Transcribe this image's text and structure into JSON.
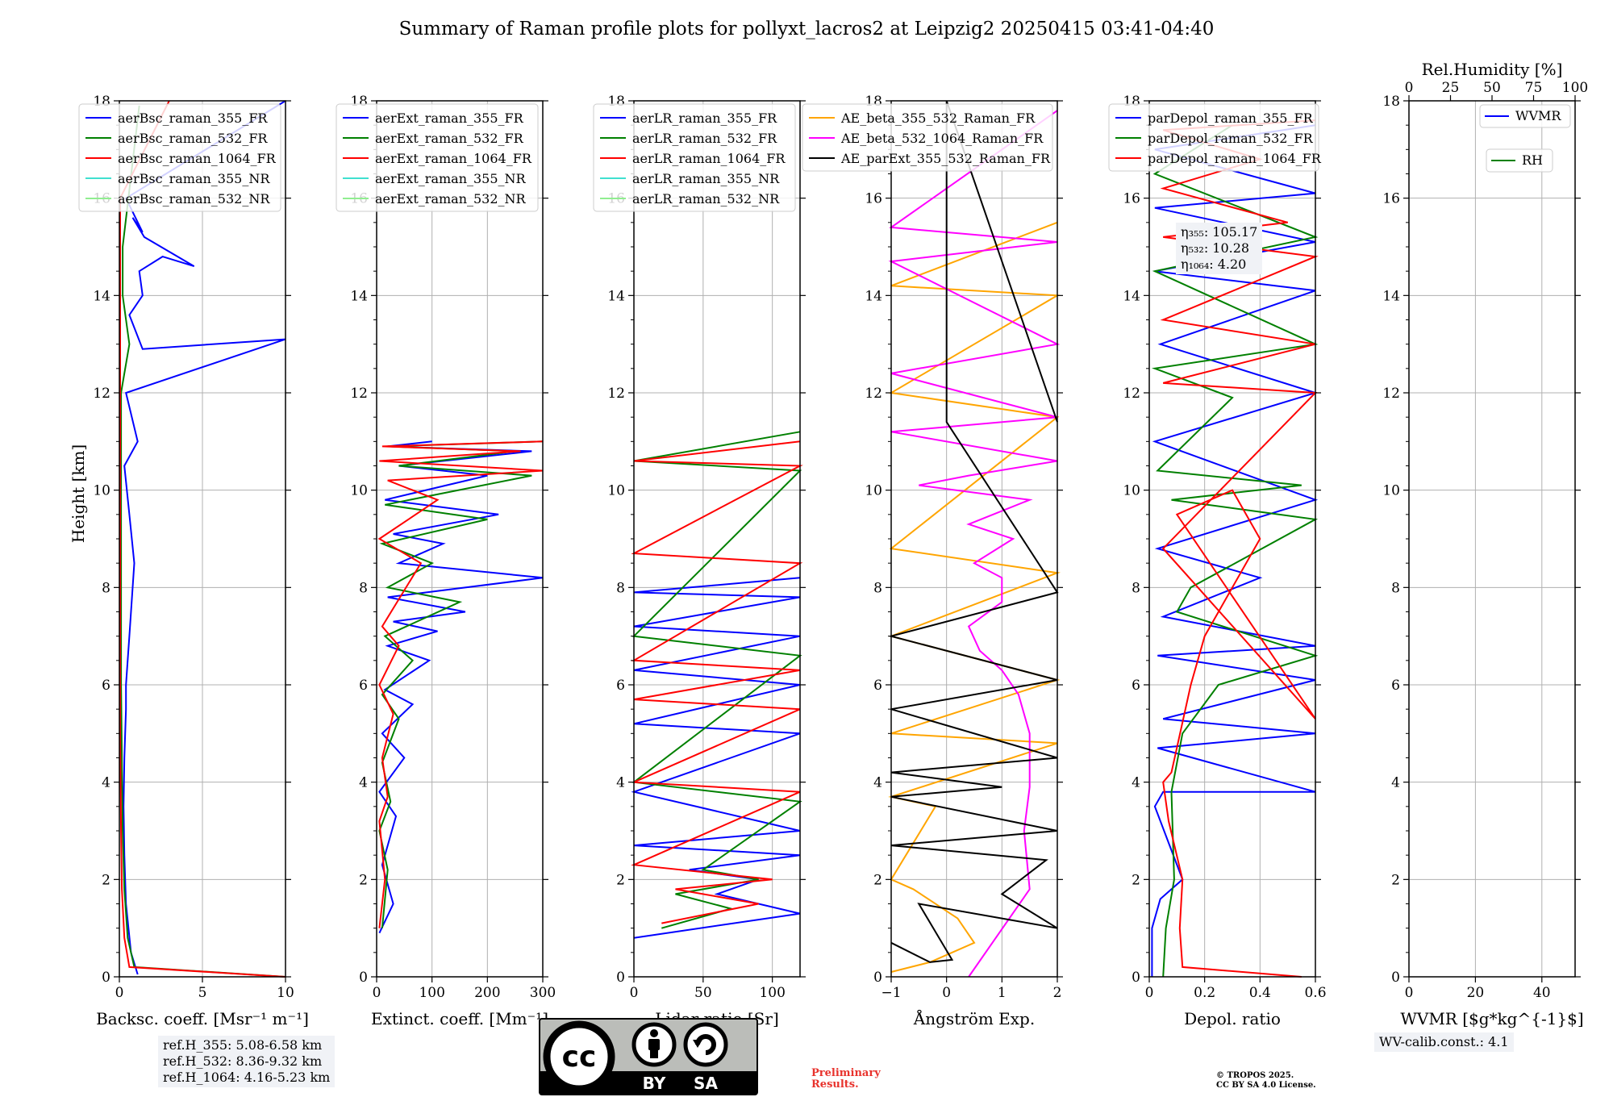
{
  "figure": {
    "title": "Summary of Raman profile plots for pollyxt_lacros2 at Leipzig2 20250415 03:41-04:40",
    "ylabel": "Height [km]"
  },
  "chart_data": [
    {
      "type": "line",
      "xlabel": "Backsc. coeff. [Msr⁻¹ m⁻¹]",
      "xlim": [
        0,
        10
      ],
      "xticks": [
        0,
        5,
        10
      ],
      "ylim": [
        0,
        18
      ],
      "yticks": [
        0,
        2,
        4,
        6,
        8,
        10,
        12,
        14,
        16,
        18
      ],
      "grid": true,
      "legend": "top-left",
      "series": [
        {
          "name": "aerBsc_raman_355_FR",
          "color": "#0000ff",
          "x": [
            1.1,
            0.7,
            0.4,
            0.3,
            0.25,
            0.3,
            0.4,
            0.4,
            0.6,
            0.9,
            0.6,
            0.3,
            1.1,
            0.4,
            10.0,
            1.4,
            0.6,
            1.4,
            1.2,
            2.6,
            4.5,
            1.5,
            0.8,
            1.4,
            0.4,
            10.0
          ],
          "y": [
            0.05,
            0.5,
            1.5,
            2.5,
            3.5,
            4.5,
            5.5,
            6.0,
            7.0,
            8.5,
            9.5,
            10.5,
            11.0,
            12.0,
            13.1,
            12.9,
            13.6,
            14.0,
            14.5,
            14.8,
            14.6,
            15.2,
            15.6,
            15.3,
            16.0,
            18.0
          ]
        },
        {
          "name": "aerBsc_raman_532_FR",
          "color": "#008000",
          "x": [
            10.0,
            0.9,
            0.5,
            0.3,
            0.2,
            0.15,
            0.1,
            0.1,
            0.1,
            0.1,
            0.6,
            0.2,
            0.2,
            1.2
          ],
          "y": [
            0.0,
            0.2,
            0.8,
            1.8,
            3.0,
            4.5,
            6.0,
            8.0,
            10.0,
            12.0,
            13.0,
            14.0,
            15.0,
            17.9
          ]
        },
        {
          "name": "aerBsc_raman_1064_FR",
          "color": "#ff0000",
          "x": [
            10.0,
            0.6,
            0.3,
            0.15,
            0.1,
            0.05,
            0.05,
            0.05,
            0.05,
            0.05,
            0.05,
            3.0
          ],
          "y": [
            0.0,
            0.2,
            0.8,
            1.8,
            3.0,
            5.0,
            8.0,
            10.0,
            12.0,
            14.0,
            16.0,
            18.0
          ]
        },
        {
          "name": "aerBsc_raman_355_NR",
          "color": "#40e0d0",
          "x": [],
          "y": []
        },
        {
          "name": "aerBsc_raman_532_NR",
          "color": "#90ee90",
          "x": [],
          "y": []
        }
      ]
    },
    {
      "type": "line",
      "xlabel": "Extinct. coeff. [Mm⁻¹]",
      "xlim": [
        0,
        300
      ],
      "xticks": [
        0,
        100,
        200,
        300
      ],
      "ylim": [
        0,
        18
      ],
      "yticks": [
        0,
        2,
        4,
        6,
        8,
        10,
        12,
        14,
        16,
        18
      ],
      "grid": true,
      "legend": "top-left",
      "series": [
        {
          "name": "aerExt_raman_355_FR",
          "color": "#0000ff",
          "x": [
            5,
            30,
            10,
            35,
            5,
            50,
            10,
            65,
            15,
            95,
            20,
            110,
            30,
            160,
            20,
            300,
            40,
            120,
            30,
            220,
            15,
            200,
            40,
            280,
            20,
            100
          ],
          "y": [
            0.9,
            1.5,
            2.3,
            3.3,
            3.8,
            4.5,
            5.0,
            5.6,
            5.9,
            6.5,
            6.8,
            7.1,
            7.3,
            7.5,
            7.8,
            8.2,
            8.5,
            8.9,
            9.1,
            9.5,
            9.8,
            10.3,
            10.5,
            10.8,
            10.9,
            11.0
          ]
        },
        {
          "name": "aerExt_raman_532_FR",
          "color": "#008000",
          "x": [
            10,
            20,
            5,
            25,
            10,
            40,
            10,
            65,
            15,
            150,
            20,
            100,
            10,
            200,
            15,
            280,
            40,
            250,
            20,
            300
          ],
          "y": [
            1.0,
            2.2,
            3.0,
            3.6,
            4.4,
            5.3,
            5.8,
            6.5,
            7.0,
            7.7,
            8.0,
            8.5,
            8.9,
            9.4,
            9.7,
            10.3,
            10.5,
            10.8,
            10.9,
            11.0
          ]
        },
        {
          "name": "aerExt_raman_1064_FR",
          "color": "#ff0000",
          "x": [
            5,
            15,
            5,
            20,
            10,
            30,
            5,
            40,
            10,
            80,
            5,
            110,
            20,
            300,
            5,
            260,
            10,
            300
          ],
          "y": [
            1.0,
            2.0,
            3.2,
            3.7,
            4.5,
            5.4,
            6.0,
            6.8,
            7.2,
            8.5,
            9.0,
            9.8,
            10.2,
            10.4,
            10.6,
            10.8,
            10.9,
            11.0
          ]
        },
        {
          "name": "aerExt_raman_355_NR",
          "color": "#40e0d0",
          "x": [],
          "y": []
        },
        {
          "name": "aerExt_raman_532_NR",
          "color": "#90ee90",
          "x": [],
          "y": []
        }
      ]
    },
    {
      "type": "line",
      "xlabel": "Lidar ratio [Sr]",
      "xlim": [
        0,
        120
      ],
      "xticks": [
        0,
        50,
        100
      ],
      "ylim": [
        0,
        18
      ],
      "yticks": [
        0,
        2,
        4,
        6,
        8,
        10,
        12,
        14,
        16,
        18
      ],
      "grid": true,
      "legend": "top-left",
      "series": [
        {
          "name": "aerLR_raman_355_FR",
          "color": "#0000ff",
          "x": [
            0,
            120,
            60,
            90,
            40,
            120,
            0,
            120,
            0,
            120,
            0,
            120,
            0,
            120,
            0,
            120,
            0,
            120
          ],
          "y": [
            0.8,
            1.3,
            1.7,
            2.0,
            2.2,
            2.5,
            2.7,
            3.0,
            3.8,
            5.0,
            5.2,
            6.0,
            6.3,
            7.0,
            7.2,
            7.8,
            7.9,
            8.2
          ]
        },
        {
          "name": "aerLR_raman_532_FR",
          "color": "#008000",
          "x": [
            20,
            70,
            30,
            90,
            50,
            120,
            0,
            120,
            0,
            120,
            0,
            120
          ],
          "y": [
            1.0,
            1.4,
            1.7,
            2.0,
            2.2,
            3.6,
            4.0,
            6.6,
            7.0,
            10.4,
            10.6,
            11.2
          ]
        },
        {
          "name": "aerLR_raman_1064_FR",
          "color": "#ff0000",
          "x": [
            20,
            90,
            30,
            100,
            0,
            120,
            0,
            120,
            0,
            120,
            0,
            120,
            0,
            120,
            0,
            120
          ],
          "y": [
            1.1,
            1.5,
            1.8,
            2.0,
            2.3,
            3.8,
            4.0,
            5.5,
            5.7,
            6.3,
            6.5,
            8.5,
            8.7,
            10.5,
            10.6,
            11.0
          ]
        },
        {
          "name": "aerLR_raman_355_NR",
          "color": "#40e0d0",
          "x": [],
          "y": []
        },
        {
          "name": "aerLR_raman_532_NR",
          "color": "#90ee90",
          "x": [],
          "y": []
        }
      ]
    },
    {
      "type": "line",
      "xlabel": "Ångström Exp.",
      "xlim": [
        -1,
        2
      ],
      "xticks": [
        -1,
        0,
        1,
        2
      ],
      "ylim": [
        0,
        18
      ],
      "yticks": [
        0,
        2,
        4,
        6,
        8,
        10,
        12,
        14,
        16,
        18
      ],
      "grid": true,
      "legend": "top-right",
      "series": [
        {
          "name": "AE_beta_355_532_Raman_FR",
          "color": "#ffa500",
          "x": [
            -1.0,
            -0.3,
            0.5,
            0.2,
            -0.6,
            -1.0,
            -0.2,
            -1.0,
            2.0,
            -1.0,
            2.0,
            -1.0,
            2.0,
            -1.0,
            2.0,
            -1.0,
            2.0,
            -1.0,
            2.0
          ],
          "y": [
            0.1,
            0.3,
            0.7,
            1.2,
            1.8,
            2.0,
            3.5,
            3.7,
            4.8,
            5.0,
            6.1,
            7.0,
            8.3,
            8.8,
            11.5,
            12.0,
            14.0,
            14.2,
            15.5
          ]
        },
        {
          "name": "AE_beta_532_1064_Raman_FR",
          "color": "#ff00ff",
          "x": [
            0.4,
            1.5,
            1.4,
            1.5,
            1.5,
            1.3,
            1.0,
            0.6,
            0.4,
            1.0,
            1.0,
            0.5,
            1.2,
            0.4,
            1.5,
            -0.5,
            0.4,
            2.0,
            -1.0,
            2.0,
            -1.0,
            2.0,
            -1.0,
            2.0,
            -1.0,
            2.0
          ],
          "y": [
            0.0,
            1.8,
            3.0,
            3.9,
            5.0,
            5.8,
            6.3,
            6.7,
            7.2,
            7.7,
            8.2,
            8.5,
            9.0,
            9.3,
            9.8,
            10.1,
            10.3,
            10.6,
            11.2,
            11.5,
            12.4,
            13.0,
            14.7,
            15.1,
            15.4,
            17.8
          ]
        },
        {
          "name": "AE_parExt_355_532_Raman_FR",
          "color": "#000000",
          "x": [
            -1.0,
            -0.3,
            0.1,
            -0.5,
            2.0,
            1.0,
            1.8,
            -1.0,
            2.0,
            -1.0,
            1.0,
            -1.0,
            2.0,
            -1.0,
            2.0,
            -1.0,
            2.0,
            0.0,
            0.0,
            2.0
          ],
          "y": [
            0.7,
            0.3,
            0.35,
            1.5,
            1.0,
            1.7,
            2.4,
            2.7,
            3.0,
            3.7,
            3.9,
            4.2,
            4.5,
            5.5,
            6.1,
            7.0,
            7.9,
            11.4,
            18.0,
            11.4
          ]
        }
      ]
    },
    {
      "type": "line",
      "xlabel": "Depol. ratio",
      "xlim": [
        0,
        0.6
      ],
      "xticks": [
        0.0,
        0.2,
        0.4,
        0.6
      ],
      "ylim": [
        0,
        18
      ],
      "yticks": [
        0,
        2,
        4,
        6,
        8,
        10,
        12,
        14,
        16,
        18
      ],
      "grid": true,
      "legend": "top-left",
      "series": [
        {
          "name": "parDepol_raman_355_FR",
          "color": "#0000ff",
          "x": [
            0.01,
            0.01,
            0.04,
            0.12,
            0.08,
            0.02,
            0.05,
            0.6,
            0.03,
            0.6,
            0.05,
            0.6,
            0.03,
            0.6,
            0.05,
            0.4,
            0.03,
            0.6,
            0.02,
            0.6,
            0.04,
            0.6,
            0.02,
            0.6,
            0.02,
            0.6,
            0.02,
            0.6
          ],
          "y": [
            0.0,
            1.0,
            1.6,
            2.0,
            2.6,
            3.5,
            3.8,
            3.8,
            4.7,
            5.0,
            5.3,
            6.1,
            6.6,
            6.8,
            7.4,
            8.2,
            8.8,
            9.8,
            11.0,
            12.0,
            13.0,
            14.1,
            14.5,
            15.1,
            15.8,
            16.1,
            17.0,
            17.5
          ]
        },
        {
          "name": "parDepol_raman_532_FR",
          "color": "#008000",
          "x": [
            0.05,
            0.06,
            0.09,
            0.08,
            0.12,
            0.25,
            0.6,
            0.1,
            0.15,
            0.6,
            0.08,
            0.55,
            0.03,
            0.3,
            0.02,
            0.6,
            0.02,
            0.6,
            0.02,
            0.3
          ],
          "y": [
            0.0,
            1.0,
            2.0,
            3.8,
            5.0,
            6.0,
            6.6,
            7.5,
            8.0,
            9.4,
            9.8,
            10.1,
            10.4,
            11.9,
            12.5,
            13.0,
            14.5,
            15.2,
            16.5,
            17.5
          ]
        },
        {
          "name": "parDepol_raman_1064_FR",
          "color": "#ff0000",
          "x": [
            0.55,
            0.12,
            0.11,
            0.12,
            0.07,
            0.05,
            0.08,
            0.15,
            0.2,
            0.4,
            0.3,
            0.1,
            0.6,
            0.05,
            0.6,
            0.05,
            0.6,
            0.05,
            0.6,
            0.05,
            0.5,
            0.05,
            0.4,
            0.05,
            0.6
          ],
          "y": [
            0.0,
            0.2,
            1.0,
            2.0,
            3.2,
            4.0,
            4.2,
            6.0,
            7.0,
            9.0,
            10.0,
            9.5,
            5.3,
            8.8,
            12.0,
            12.2,
            13.0,
            13.5,
            14.8,
            15.2,
            15.5,
            16.2,
            16.8,
            17.4,
            17.6
          ]
        }
      ]
    },
    {
      "type": "line",
      "xlabel": "WVMR [$g*kg^{-1}$]",
      "xlim": [
        0,
        50
      ],
      "xticks": [
        0,
        20,
        40
      ],
      "x2label": "Rel.Humidity [%]",
      "x2lim": [
        0,
        100
      ],
      "x2ticks": [
        0,
        25,
        50,
        75,
        100
      ],
      "ylim": [
        0,
        18
      ],
      "yticks": [
        0,
        2,
        4,
        6,
        8,
        10,
        12,
        14,
        16,
        18
      ],
      "grid": true,
      "legend": "top-right",
      "series": [
        {
          "name": "WVMR",
          "color": "#0000ff",
          "x": [],
          "y": []
        },
        {
          "name": "RH",
          "color": "#008000",
          "x": [],
          "y": []
        }
      ]
    }
  ],
  "annotations": {
    "eta": [
      "η₃₅₅: 105.17",
      "η₅₃₂: 10.28",
      "η₁₀₆₄: 4.20"
    ],
    "ref_heights": [
      "ref.H_355: 5.08-6.58 km",
      "ref.H_532: 8.36-9.32 km",
      "ref.H_1064: 4.16-5.23 km"
    ],
    "wv_calib": "WV-calib.const.: 4.1",
    "preliminary": [
      "Preliminary",
      "Results."
    ],
    "copyright": [
      "© TROPOS 2025.",
      "CC BY SA 4.0 License."
    ],
    "cc_badge": {
      "by": "BY",
      "sa": "SA",
      "cc": "cc"
    }
  }
}
